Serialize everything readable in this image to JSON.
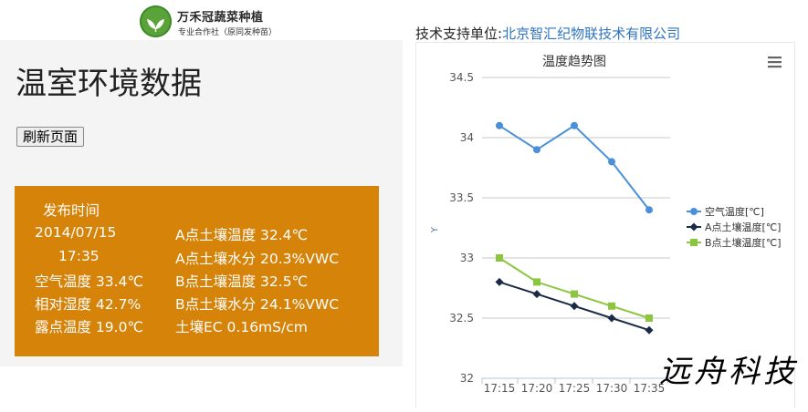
{
  "logo": {
    "title": "万禾冠蔬菜种植",
    "subtitle": "专业合作社（原同发种苗）"
  },
  "page_title": "温室环境数据",
  "refresh_button": "刷新页面",
  "data_panel": {
    "publish_label": "发布时间",
    "date": "2014/07/15",
    "time": "17:35",
    "air_temp": "空气温度 33.4℃",
    "humidity": "相对湿度 42.7%",
    "dew_point": "露点温度 19.0℃",
    "a_soil_temp": "A点土壤温度 32.4℃",
    "a_soil_moisture": "A点土壤水分 20.3%VWC",
    "b_soil_temp": "B点土壤温度 32.5℃",
    "b_soil_moisture": "B点土壤水分 24.1%VWC",
    "soil_ec": "土壤EC 0.16mS/cm"
  },
  "support": {
    "label": "技术支持单位:",
    "company": "北京智汇纪物联技术有限公司"
  },
  "signature": "远舟科技",
  "chart_data": {
    "type": "line",
    "title": "温度趋势图",
    "ylabel": "Y",
    "xlabel": "",
    "categories": [
      "17:15",
      "17:20",
      "17:25",
      "17:30",
      "17:35"
    ],
    "ylim": [
      32,
      34.5
    ],
    "yticks": [
      32,
      32.5,
      33,
      33.5,
      34,
      34.5
    ],
    "grid": true,
    "legend_position": "right",
    "series": [
      {
        "name": "空气温度[℃]",
        "values": [
          34.1,
          33.9,
          34.1,
          33.8,
          33.4
        ],
        "color": "#4a90d9",
        "marker": "circle"
      },
      {
        "name": "A点土壤温度[℃]",
        "values": [
          32.8,
          32.7,
          32.6,
          32.5,
          32.4
        ],
        "color": "#1c2b45",
        "marker": "diamond"
      },
      {
        "name": "B点土壤温度[℃]",
        "values": [
          33.0,
          32.8,
          32.7,
          32.6,
          32.5
        ],
        "color": "#8cc63f",
        "marker": "square"
      }
    ]
  }
}
